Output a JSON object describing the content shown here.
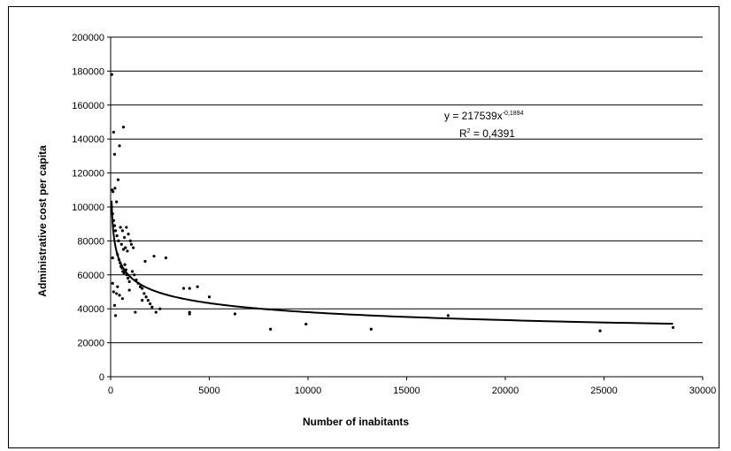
{
  "chart_data": {
    "type": "scatter",
    "xlabel": "Number of inabitants",
    "ylabel": "Administrative cost per capita",
    "xlim": [
      0,
      30000
    ],
    "ylim": [
      0,
      200000
    ],
    "x_ticks": [
      0,
      5000,
      10000,
      15000,
      20000,
      25000,
      30000
    ],
    "x_tick_labels": [
      "0",
      "5000",
      "10000",
      "15000",
      "20000",
      "25000",
      "30000"
    ],
    "y_ticks": [
      0,
      20000,
      40000,
      60000,
      80000,
      100000,
      120000,
      140000,
      160000,
      180000,
      200000
    ],
    "y_tick_labels": [
      "0",
      "20000",
      "40000",
      "60000",
      "80000",
      "100000",
      "120000",
      "140000",
      "160000",
      "180000",
      "200000"
    ],
    "grid": "horizontal",
    "trendline": {
      "type": "power",
      "coefficient": 217539,
      "exponent": -0.1894,
      "equation_text": "y = 217539x",
      "equation_exponent_text": "-0,1894",
      "r2_text": "R",
      "r2_superscript": "2",
      "r2_value_text": " = 0,4391"
    },
    "points": [
      [
        60,
        178000
      ],
      [
        150,
        144000
      ],
      [
        200,
        131000
      ],
      [
        450,
        136000
      ],
      [
        650,
        147000
      ],
      [
        380,
        116000
      ],
      [
        80,
        110000
      ],
      [
        120,
        109000
      ],
      [
        220,
        111000
      ],
      [
        300,
        103000
      ],
      [
        50,
        100000
      ],
      [
        100,
        96000
      ],
      [
        150,
        92000
      ],
      [
        200,
        89000
      ],
      [
        250,
        86000
      ],
      [
        320,
        83000
      ],
      [
        400,
        80000
      ],
      [
        500,
        88000
      ],
      [
        600,
        86000
      ],
      [
        700,
        82000
      ],
      [
        800,
        88000
      ],
      [
        900,
        84000
      ],
      [
        1000,
        80000
      ],
      [
        550,
        78000
      ],
      [
        650,
        75000
      ],
      [
        750,
        76000
      ],
      [
        850,
        74000
      ],
      [
        1050,
        78000
      ],
      [
        1150,
        76000
      ],
      [
        350,
        72000
      ],
      [
        420,
        69000
      ],
      [
        480,
        67000
      ],
      [
        520,
        65000
      ],
      [
        580,
        64000
      ],
      [
        620,
        62000
      ],
      [
        680,
        61000
      ],
      [
        720,
        66000
      ],
      [
        780,
        63000
      ],
      [
        820,
        60000
      ],
      [
        880,
        58000
      ],
      [
        950,
        56000
      ],
      [
        1100,
        62000
      ],
      [
        1200,
        60000
      ],
      [
        1300,
        57000
      ],
      [
        1400,
        55000
      ],
      [
        1500,
        53000
      ],
      [
        1600,
        52000
      ],
      [
        1700,
        49000
      ],
      [
        1800,
        47000
      ],
      [
        1900,
        45000
      ],
      [
        2000,
        43000
      ],
      [
        2100,
        41000
      ],
      [
        2300,
        38000
      ],
      [
        1250,
        38000
      ],
      [
        950,
        51000
      ],
      [
        1750,
        68000
      ],
      [
        2200,
        71000
      ],
      [
        2800,
        70000
      ],
      [
        1600,
        45000
      ],
      [
        2500,
        40000
      ],
      [
        100,
        70000
      ],
      [
        150,
        50000
      ],
      [
        200,
        42000
      ],
      [
        250,
        36000
      ],
      [
        100,
        55000
      ],
      [
        300,
        49000
      ],
      [
        350,
        53000
      ],
      [
        450,
        48000
      ],
      [
        600,
        46000
      ],
      [
        3700,
        52000
      ],
      [
        4000,
        52000
      ],
      [
        4400,
        53000
      ],
      [
        4000,
        38000
      ],
      [
        4000,
        37000
      ],
      [
        5000,
        47000
      ],
      [
        6300,
        37000
      ],
      [
        8100,
        28000
      ],
      [
        9900,
        31000
      ],
      [
        13200,
        28000
      ],
      [
        17100,
        36000
      ],
      [
        24800,
        27000
      ],
      [
        28500,
        29000
      ]
    ]
  }
}
